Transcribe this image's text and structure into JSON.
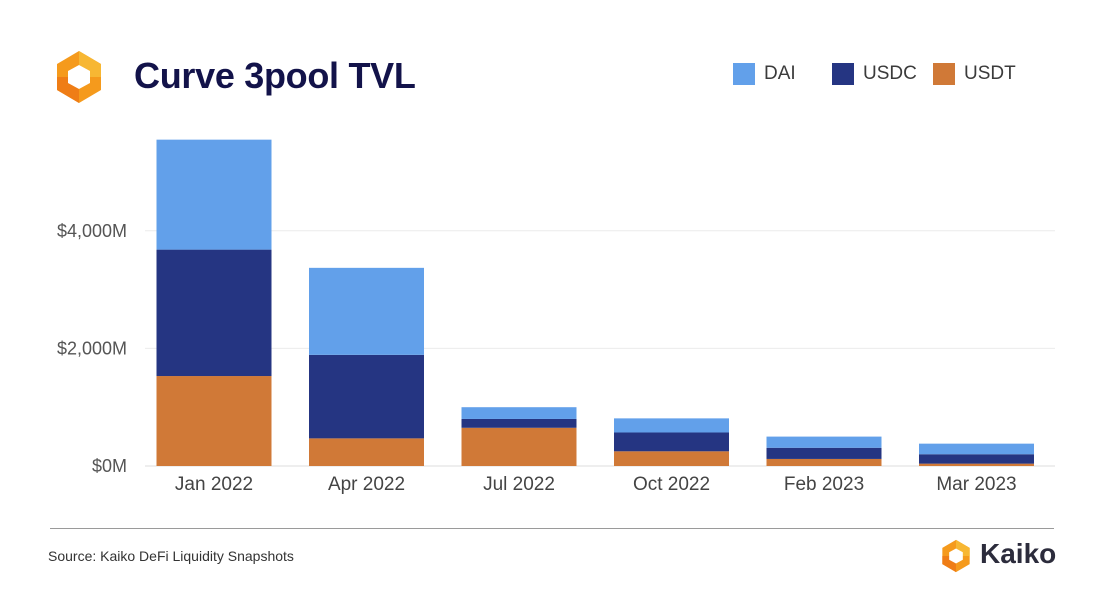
{
  "header": {
    "title": "Curve 3pool TVL",
    "logo_icon": "kaiko-hexagon-logo-icon"
  },
  "legend": {
    "items": [
      {
        "label": "DAI",
        "color": "#62a0ea"
      },
      {
        "label": "USDC",
        "color": "#253582"
      },
      {
        "label": "USDT",
        "color": "#d07937"
      }
    ]
  },
  "chart_data": {
    "type": "bar",
    "stacked": true,
    "title": "Curve 3pool TVL",
    "xlabel": "",
    "ylabel": "",
    "categories": [
      "Jan 2022",
      "Apr 2022",
      "Jul 2022",
      "Oct 2022",
      "Feb 2023",
      "Mar 2023"
    ],
    "series": [
      {
        "name": "USDT",
        "color": "#d07937",
        "values": [
          1530,
          470,
          650,
          250,
          120,
          40
        ]
      },
      {
        "name": "USDC",
        "color": "#253582",
        "values": [
          2150,
          1420,
          150,
          320,
          190,
          160
        ]
      },
      {
        "name": "DAI",
        "color": "#62a0ea",
        "values": [
          1870,
          1480,
          200,
          240,
          190,
          180
        ]
      }
    ],
    "yticks": [
      0,
      2000,
      4000
    ],
    "ytick_labels": [
      "$0M",
      "$2,000M",
      "$4,000M"
    ],
    "ylim": [
      0,
      6000
    ],
    "grid": true,
    "legend_position": "top-right"
  },
  "footer": {
    "source": "Source: Kaiko DeFi Liquidity Snapshots",
    "brand_name": "Kaiko",
    "brand_icon": "kaiko-hexagon-logo-icon"
  }
}
